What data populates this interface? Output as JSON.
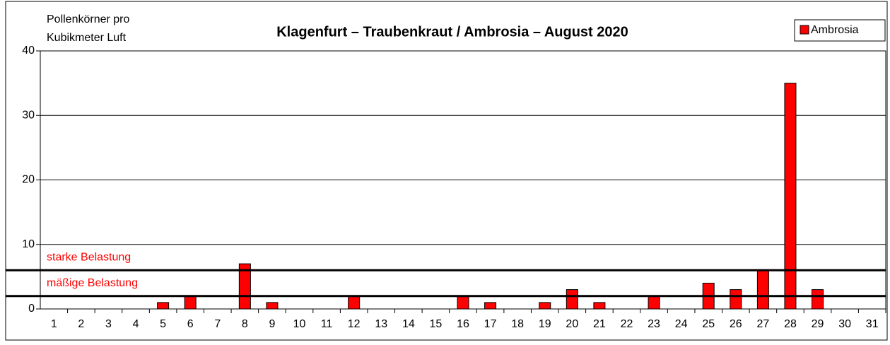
{
  "chart_data": {
    "type": "bar",
    "title": "Klagenfurt – Traubenkraut / Ambrosia – August 2020",
    "ylabel": [
      "Pollenkörner pro",
      "Kubikmeter Luft"
    ],
    "categories": [
      "1",
      "2",
      "3",
      "4",
      "5",
      "6",
      "7",
      "8",
      "9",
      "10",
      "11",
      "12",
      "13",
      "14",
      "15",
      "16",
      "17",
      "18",
      "19",
      "20",
      "21",
      "22",
      "23",
      "24",
      "25",
      "26",
      "27",
      "28",
      "29",
      "30",
      "31"
    ],
    "series": [
      {
        "name": "Ambrosia",
        "color": "#ff0000",
        "values": [
          0,
          0,
          0,
          0,
          1,
          2,
          0,
          7,
          1,
          0,
          0,
          2,
          0,
          0,
          0,
          2,
          1,
          0,
          1,
          3,
          1,
          0,
          2,
          0,
          4,
          3,
          6,
          35,
          3,
          0,
          0
        ]
      }
    ],
    "ylim": [
      0,
      40
    ],
    "yticks": [
      0,
      10,
      20,
      30,
      40
    ],
    "grid": true,
    "thresholds": [
      {
        "label": "starke Belastung",
        "value": 6
      },
      {
        "label": "mäßige Belastung",
        "value": 2
      }
    ],
    "legend": "top-right"
  }
}
